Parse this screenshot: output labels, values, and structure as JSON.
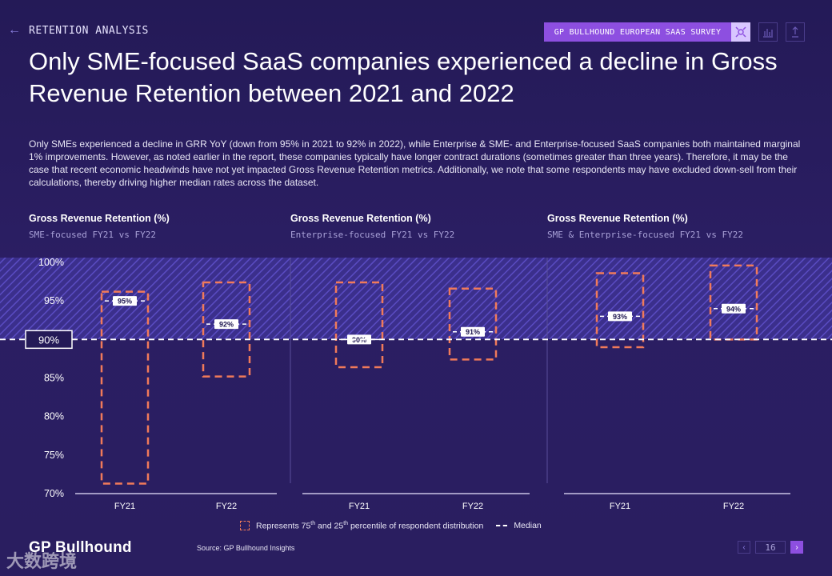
{
  "header": {
    "back_icon": "arrow-left-icon",
    "section": "RETENTION ANALYSIS",
    "badge": "GP BULLHOUND EUROPEAN SAAS SURVEY",
    "tools": [
      "chart-icon",
      "share-icon"
    ]
  },
  "title": "Only SME-focused SaaS companies experienced a decline in Gross Revenue Retention between 2021 and 2022",
  "intro": "Only SMEs experienced a decline in GRR YoY (down from 95% in 2021 to 92% in 2022), while Enterprise & SME- and Enterprise-focused SaaS companies both maintained marginal 1% improvements. However, as noted earlier in the report, these companies typically have longer contract durations (sometimes greater than three years). Therefore, it may be the case that recent economic headwinds have not yet impacted Gross Revenue Retention metrics. Additionally, we note that some respondents may have excluded down-sell from their calculations, thereby driving higher median rates across the dataset.",
  "panels": [
    {
      "title": "Gross Revenue Retention (%)",
      "subtitle": "SME-focused FY21 vs FY22"
    },
    {
      "title": "Gross Revenue Retention (%)",
      "subtitle": "Enterprise-focused FY21 vs FY22"
    },
    {
      "title": "Gross Revenue Retention (%)",
      "subtitle": "SME & Enterprise-focused FY21 vs FY22"
    }
  ],
  "chart_data": {
    "type": "box",
    "ylim": [
      70,
      100
    ],
    "y_ticks": [
      "100%",
      "95%",
      "90%",
      "85%",
      "80%",
      "75%",
      "70%"
    ],
    "y_tick_values": [
      100,
      95,
      90,
      85,
      80,
      75,
      70
    ],
    "reference_line": {
      "value": 90,
      "label": "90%"
    },
    "categories": [
      "FY21",
      "FY22"
    ],
    "series": [
      {
        "name": "SME-focused",
        "groups": [
          {
            "category": "FY21",
            "p25": 71.3,
            "p75": 96.2,
            "median": 95,
            "label": "95%"
          },
          {
            "category": "FY22",
            "p25": 85.2,
            "p75": 97.4,
            "median": 92,
            "label": "92%"
          }
        ]
      },
      {
        "name": "Enterprise-focused",
        "groups": [
          {
            "category": "FY21",
            "p25": 86.4,
            "p75": 97.4,
            "median": 90,
            "label": "90%"
          },
          {
            "category": "FY22",
            "p25": 87.4,
            "p75": 96.6,
            "median": 91,
            "label": "91%"
          }
        ]
      },
      {
        "name": "SME & Enterprise-focused",
        "groups": [
          {
            "category": "FY21",
            "p25": 89.0,
            "p75": 98.6,
            "median": 93,
            "label": "93%"
          },
          {
            "category": "FY22",
            "p25": 90.0,
            "p75": 99.6,
            "median": 94,
            "label": "94%"
          }
        ]
      }
    ],
    "colors": {
      "box": "#f07a5a",
      "median": "#ffffff",
      "hatch": "#6a5cd6"
    }
  },
  "legend": {
    "box_prefix": "Represents 75",
    "box_sup1": "th",
    "box_mid": " and 25",
    "box_sup2": "th",
    "box_suffix": " percentile of respondent distribution",
    "median": "Median"
  },
  "footer": {
    "logo": "GP Bullhound",
    "source": "Source: GP Bullhound Insights",
    "watermark": "大数跨境",
    "page": "16"
  }
}
